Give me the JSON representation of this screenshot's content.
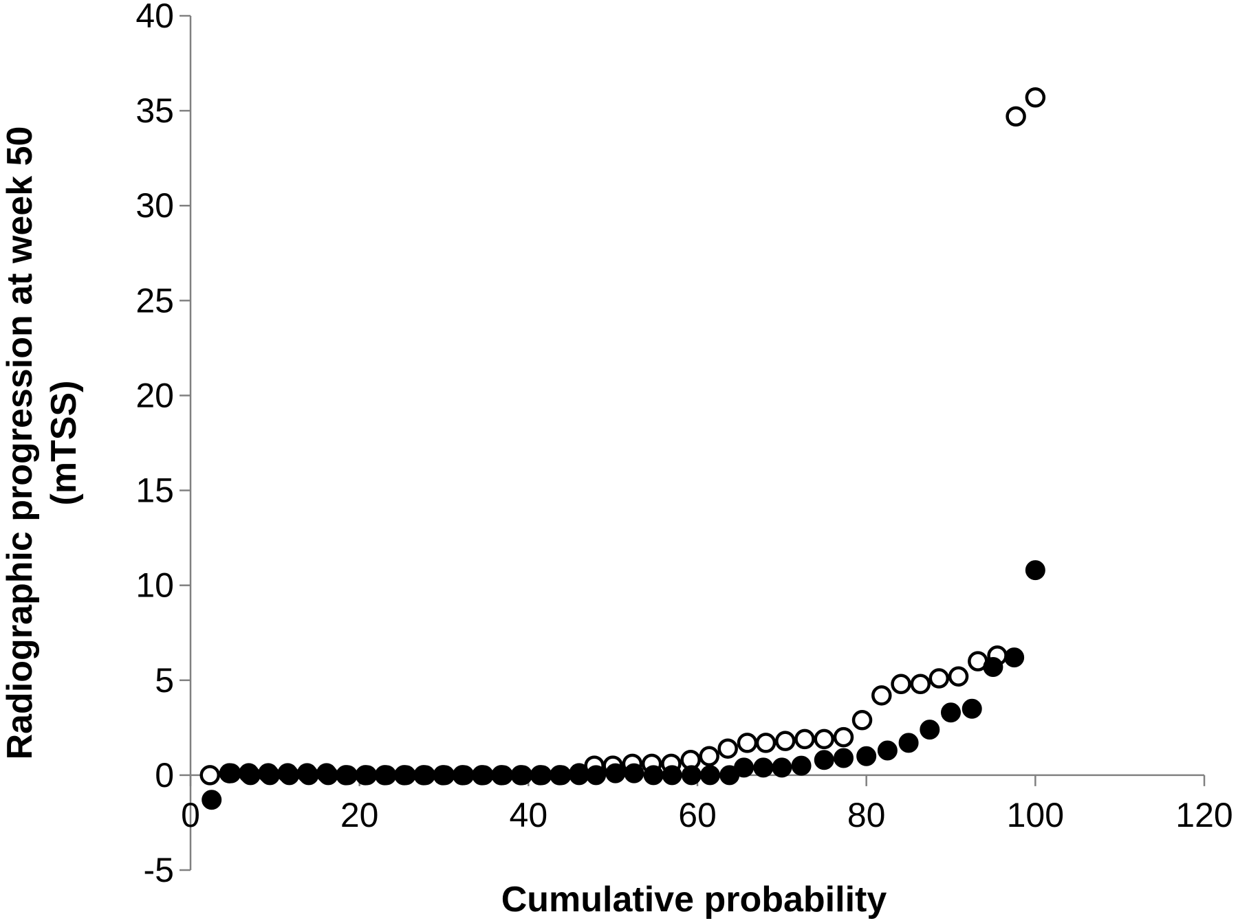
{
  "chart_data": {
    "type": "scatter",
    "title": "",
    "xlabel": "Cumulative probability",
    "ylabel_lines": [
      "Radiographic progression at week 50",
      "(mTSS)"
    ],
    "xlim": [
      0,
      120
    ],
    "ylim": [
      -5,
      40
    ],
    "x_ticks": [
      "0",
      "20",
      "40",
      "60",
      "80",
      "100",
      "120"
    ],
    "y_ticks": [
      "-5",
      "0",
      "5",
      "10",
      "15",
      "20",
      "25",
      "30",
      "35",
      "40"
    ],
    "grid": false,
    "legend": "none",
    "series": [
      {
        "marker": "open-circle",
        "color": "#000000",
        "points": [
          [
            2.3,
            0.0
          ],
          [
            4.6,
            0.1
          ],
          [
            6.9,
            0.1
          ],
          [
            9.2,
            0.1
          ],
          [
            11.5,
            0.1
          ],
          [
            13.8,
            0.1
          ],
          [
            16.1,
            0.1
          ],
          [
            18.4,
            0.0
          ],
          [
            20.7,
            0.0
          ],
          [
            23.0,
            0.0
          ],
          [
            25.3,
            0.0
          ],
          [
            27.6,
            0.0
          ],
          [
            29.9,
            0.0
          ],
          [
            32.2,
            0.0
          ],
          [
            34.5,
            0.0
          ],
          [
            36.8,
            0.0
          ],
          [
            39.1,
            0.0
          ],
          [
            41.4,
            0.0
          ],
          [
            43.7,
            0.0
          ],
          [
            46.0,
            0.1
          ],
          [
            47.8,
            0.5
          ],
          [
            50.0,
            0.5
          ],
          [
            52.3,
            0.6
          ],
          [
            54.6,
            0.6
          ],
          [
            56.9,
            0.6
          ],
          [
            59.2,
            0.8
          ],
          [
            61.4,
            1.0
          ],
          [
            63.6,
            1.4
          ],
          [
            65.9,
            1.7
          ],
          [
            68.1,
            1.7
          ],
          [
            70.4,
            1.8
          ],
          [
            72.7,
            1.9
          ],
          [
            75.0,
            1.9
          ],
          [
            77.3,
            2.0
          ],
          [
            79.5,
            2.9
          ],
          [
            81.8,
            4.2
          ],
          [
            84.1,
            4.8
          ],
          [
            86.4,
            4.8
          ],
          [
            88.6,
            5.1
          ],
          [
            90.9,
            5.2
          ],
          [
            93.2,
            6.0
          ],
          [
            95.5,
            6.3
          ],
          [
            97.7,
            34.7
          ],
          [
            100.0,
            35.7
          ]
        ]
      },
      {
        "marker": "filled-circle",
        "color": "#000000",
        "points": [
          [
            2.5,
            -1.3
          ],
          [
            4.8,
            0.1
          ],
          [
            7.1,
            0.0
          ],
          [
            9.4,
            0.0
          ],
          [
            11.7,
            0.0
          ],
          [
            14.0,
            0.0
          ],
          [
            16.3,
            0.0
          ],
          [
            18.6,
            0.0
          ],
          [
            20.9,
            0.0
          ],
          [
            23.2,
            0.0
          ],
          [
            25.5,
            0.0
          ],
          [
            27.8,
            0.0
          ],
          [
            30.1,
            0.0
          ],
          [
            32.4,
            0.0
          ],
          [
            34.7,
            0.0
          ],
          [
            37.0,
            0.0
          ],
          [
            39.3,
            0.0
          ],
          [
            41.6,
            0.0
          ],
          [
            43.9,
            0.0
          ],
          [
            46.0,
            0.0
          ],
          [
            48.0,
            0.0
          ],
          [
            50.3,
            0.1
          ],
          [
            52.5,
            0.1
          ],
          [
            54.8,
            0.0
          ],
          [
            57.0,
            0.0
          ],
          [
            59.3,
            0.0
          ],
          [
            61.5,
            0.0
          ],
          [
            63.8,
            0.0
          ],
          [
            65.5,
            0.4
          ],
          [
            67.8,
            0.4
          ],
          [
            70.0,
            0.4
          ],
          [
            72.3,
            0.5
          ],
          [
            75.0,
            0.8
          ],
          [
            77.3,
            0.9
          ],
          [
            80.0,
            1.0
          ],
          [
            82.5,
            1.3
          ],
          [
            85.0,
            1.7
          ],
          [
            87.5,
            2.4
          ],
          [
            90.0,
            3.3
          ],
          [
            92.5,
            3.5
          ],
          [
            95.0,
            5.7
          ],
          [
            97.5,
            6.2
          ],
          [
            100.0,
            10.8
          ]
        ]
      }
    ]
  }
}
